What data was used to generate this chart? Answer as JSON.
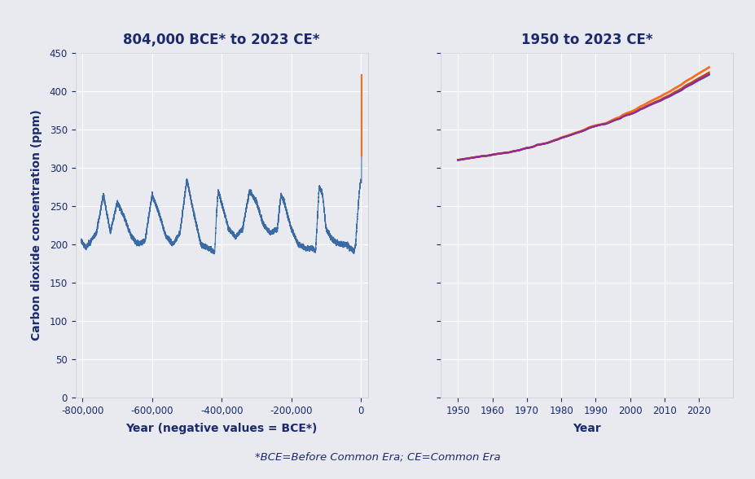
{
  "title_left": "804,000 BCE* to 2023 CE*",
  "title_right": "1950 to 2023 CE*",
  "ylabel": "Carbon dioxide concentration (ppm)",
  "xlabel_left": "Year (negative values = BCE*)",
  "xlabel_right": "Year",
  "footnote": "*BCE=Before Common Era; CE=Common Era",
  "bg_color": "#e8eaf0",
  "plot_bg_color": "#e8eaf0",
  "title_color": "#1a2a6c",
  "axis_color": "#1a2a6c",
  "label_color": "#1a2a6c",
  "line_color_ice": "#3b6ba5",
  "line_color_modern_blue": "#3b6ba5",
  "line_color_orange": "#f07020",
  "line_color_red": "#e03020",
  "line_color_green": "#20a020",
  "line_color_purple": "#a020a0",
  "ylim": [
    0,
    450
  ],
  "yticks": [
    0,
    50,
    100,
    150,
    200,
    250,
    300,
    350,
    400,
    450
  ],
  "xlim_left": [
    -820000,
    20000
  ],
  "xticks_left": [
    -800000,
    -600000,
    -400000,
    -200000,
    0
  ],
  "xlim_right": [
    1945,
    2030
  ],
  "xticks_right": [
    1950,
    1960,
    1970,
    1980,
    1990,
    2000,
    2010,
    2020
  ]
}
